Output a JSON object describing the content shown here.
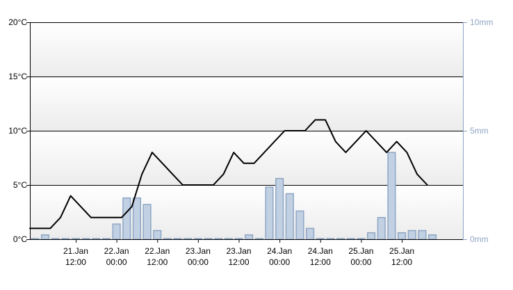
{
  "chart_data": {
    "type": "line+bar",
    "title": "",
    "grid": true,
    "x_ticks": [
      {
        "line1": "21.Jan",
        "line2": "12:00",
        "t": 21.5
      },
      {
        "line1": "22.Jan",
        "line2": "00:00",
        "t": 22.0
      },
      {
        "line1": "22.Jan",
        "line2": "12:00",
        "t": 22.5
      },
      {
        "line1": "23.Jan",
        "line2": "00:00",
        "t": 23.0
      },
      {
        "line1": "23.Jan",
        "line2": "12:00",
        "t": 23.5
      },
      {
        "line1": "24.Jan",
        "line2": "00:00",
        "t": 24.0
      },
      {
        "line1": "24.Jan",
        "line2": "12:00",
        "t": 24.5
      },
      {
        "line1": "25.Jan",
        "line2": "00:00",
        "t": 25.0
      },
      {
        "line1": "25.Jan",
        "line2": "12:00",
        "t": 25.5
      }
    ],
    "x_range": [
      20.9375,
      26.25
    ],
    "y_left": {
      "unit": "°C",
      "range": [
        0,
        20
      ],
      "ticks": [
        "0°C",
        "5°C",
        "10°C",
        "15°C",
        "20°C"
      ],
      "tick_values": [
        0,
        5,
        10,
        15,
        20
      ]
    },
    "y_right": {
      "unit": "mm",
      "range": [
        0,
        10
      ],
      "ticks": [
        "0mm",
        "5mm",
        "10mm"
      ],
      "tick_values": [
        0,
        5,
        10
      ]
    },
    "temperature_series": {
      "color": "#000000",
      "points": [
        [
          20.9375,
          1.0
        ],
        [
          21.0625,
          1.0
        ],
        [
          21.1875,
          1.0
        ],
        [
          21.3125,
          2.0
        ],
        [
          21.4375,
          4.0
        ],
        [
          21.5625,
          3.0
        ],
        [
          21.6875,
          2.0
        ],
        [
          21.8125,
          2.0
        ],
        [
          21.9375,
          2.0
        ],
        [
          22.0625,
          2.0
        ],
        [
          22.1875,
          3.0
        ],
        [
          22.3125,
          6.0
        ],
        [
          22.4375,
          8.0
        ],
        [
          22.5625,
          7.0
        ],
        [
          22.6875,
          6.0
        ],
        [
          22.8125,
          5.0
        ],
        [
          22.9375,
          5.0
        ],
        [
          23.0625,
          5.0
        ],
        [
          23.1875,
          5.0
        ],
        [
          23.3125,
          6.0
        ],
        [
          23.4375,
          8.0
        ],
        [
          23.5625,
          7.0
        ],
        [
          23.6875,
          7.0
        ],
        [
          23.8125,
          8.0
        ],
        [
          23.9375,
          9.0
        ],
        [
          24.0625,
          10.0
        ],
        [
          24.1875,
          10.0
        ],
        [
          24.3125,
          10.0
        ],
        [
          24.4375,
          11.0
        ],
        [
          24.5625,
          11.0
        ],
        [
          24.6875,
          9.0
        ],
        [
          24.8125,
          8.0
        ],
        [
          24.9375,
          9.0
        ],
        [
          25.0625,
          10.0
        ],
        [
          25.1875,
          9.0
        ],
        [
          25.3125,
          8.0
        ],
        [
          25.4375,
          9.0
        ],
        [
          25.5625,
          8.0
        ],
        [
          25.6875,
          6.0
        ],
        [
          25.8125,
          5.0
        ]
      ]
    },
    "precipitation_series": {
      "color": "#c2d0e3",
      "border": "#8ea6c4",
      "bars": [
        [
          21.0,
          0.0
        ],
        [
          21.125,
          0.2
        ],
        [
          21.25,
          0.0
        ],
        [
          21.375,
          0.0
        ],
        [
          21.5,
          0.0
        ],
        [
          21.625,
          0.0
        ],
        [
          21.75,
          0.0
        ],
        [
          21.875,
          0.0
        ],
        [
          22.0,
          0.7
        ],
        [
          22.125,
          1.9
        ],
        [
          22.25,
          1.9
        ],
        [
          22.375,
          1.6
        ],
        [
          22.5,
          0.4
        ],
        [
          22.625,
          0.0
        ],
        [
          22.75,
          0.0
        ],
        [
          22.875,
          0.0
        ],
        [
          23.0,
          0.0
        ],
        [
          23.125,
          0.0
        ],
        [
          23.25,
          0.0
        ],
        [
          23.375,
          0.0
        ],
        [
          23.5,
          0.0
        ],
        [
          23.625,
          0.2
        ],
        [
          23.75,
          0.0
        ],
        [
          23.875,
          2.4
        ],
        [
          24.0,
          2.8
        ],
        [
          24.125,
          2.1
        ],
        [
          24.25,
          1.3
        ],
        [
          24.375,
          0.5
        ],
        [
          24.5,
          0.0
        ],
        [
          24.625,
          0.0
        ],
        [
          24.75,
          0.0
        ],
        [
          24.875,
          0.0
        ],
        [
          25.0,
          0.0
        ],
        [
          25.125,
          0.3
        ],
        [
          25.25,
          1.0
        ],
        [
          25.375,
          4.0
        ],
        [
          25.5,
          0.3
        ],
        [
          25.625,
          0.4
        ],
        [
          25.75,
          0.4
        ],
        [
          25.875,
          0.2
        ]
      ]
    }
  }
}
